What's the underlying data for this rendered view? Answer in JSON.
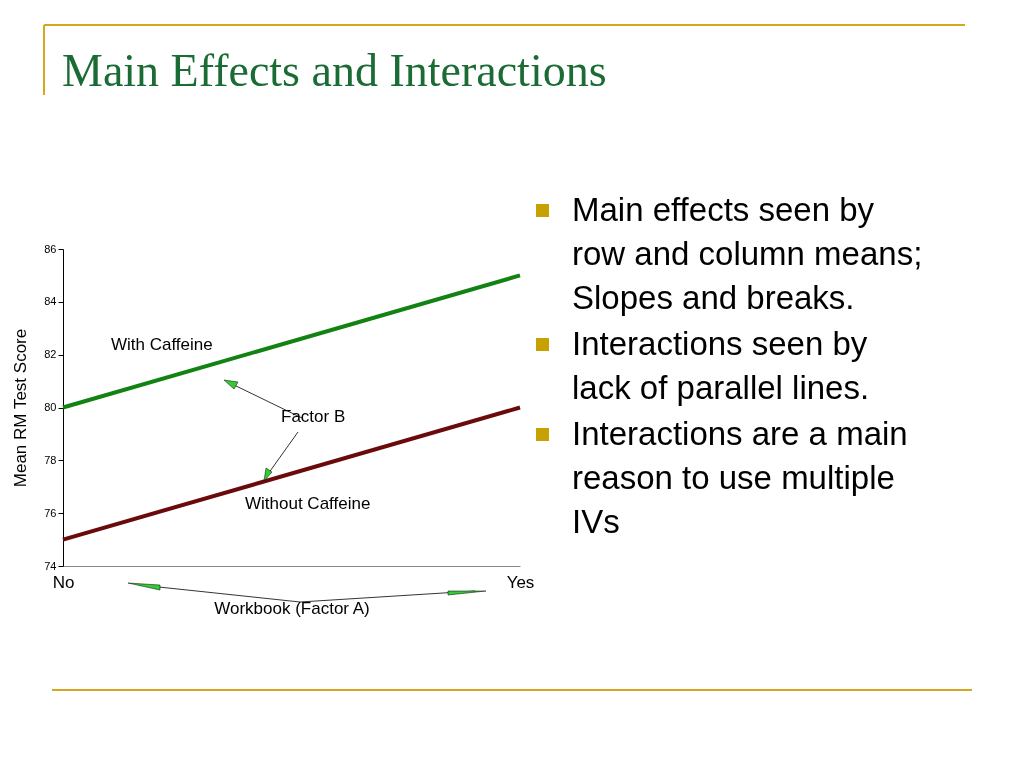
{
  "chart_data": {
    "type": "line",
    "title": "Main Effects and Interactions",
    "xlabel": "Workbook (Factor A)",
    "ylabel": "Mean RM Test Score",
    "categories": [
      "No",
      "Yes"
    ],
    "series": [
      {
        "name": "With Caffeine",
        "color": "#128212",
        "values": [
          80,
          85
        ]
      },
      {
        "name": "Without Caffeine",
        "color": "#6b0a0a",
        "values": [
          75,
          80
        ]
      }
    ],
    "ylim": [
      74,
      86
    ],
    "yticks": [
      74,
      76,
      78,
      80,
      82,
      84,
      86
    ],
    "grid": false,
    "legend": false,
    "marker": "none",
    "line_style": "solid",
    "annotations": [
      "Factor B",
      "Main effects seen by row and column means; Slopes and breaks.",
      "Interactions seen by lack of parallel lines.",
      "Interactions are a main reason to use multiple IVs"
    ]
  }
}
